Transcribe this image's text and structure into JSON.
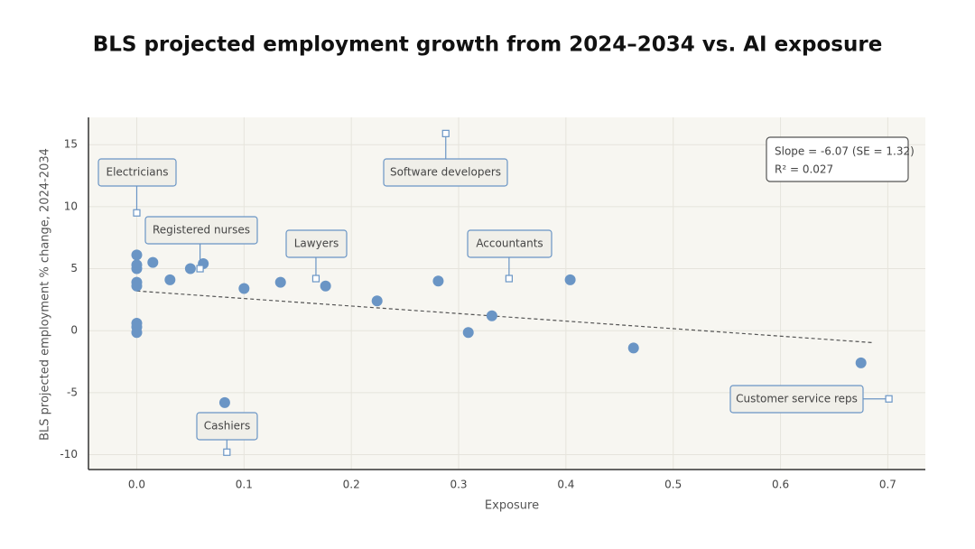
{
  "chart_data": {
    "type": "scatter",
    "title": "BLS projected employment growth from 2024–2034 vs. AI exposure",
    "x_label": "Exposure",
    "y_label": "BLS projected employment % change, 2024-2034",
    "x": [
      0,
      0,
      0,
      0,
      0,
      0,
      0,
      0,
      0.015,
      0.031,
      0.05,
      0.062,
      0.082,
      0.1,
      0.134,
      0.176,
      0.224,
      0.281,
      0.309,
      0.331,
      0.404,
      0.463,
      0.675
    ],
    "series": [
      {
        "color": "#6a95c5",
        "values": [
          6.1,
          5.3,
          5.0,
          3.9,
          3.6,
          0.6,
          0.3,
          -0.15,
          5.5,
          4.1,
          5.0,
          5.4,
          -5.8,
          3.4,
          3.9,
          3.6,
          2.4,
          4.0,
          -0.15,
          1.2,
          4.1,
          -1.4,
          -2.6
        ]
      }
    ],
    "trendline": {
      "x": [
        0,
        0.685
      ],
      "y": [
        3.2,
        -0.96
      ],
      "color": "#555555"
    },
    "stats": [
      "Slope = -6.07 (SE = 1.32)",
      "R² = 0.027"
    ],
    "annotations": [
      {
        "label": "Electricians",
        "x": 0,
        "y": 9.5
      },
      {
        "label": "Registered nurses",
        "x": 0.059,
        "y": 5.0
      },
      {
        "label": "Lawyers",
        "x": 0.167,
        "y": 4.2
      },
      {
        "label": "Software developers",
        "x": 0.288,
        "y": 15.9
      },
      {
        "label": "Accountants",
        "x": 0.347,
        "y": 4.2
      },
      {
        "label": "Cashiers",
        "x": 0.084,
        "y": -9.8
      },
      {
        "label": "Customer service reps",
        "x": 0.701,
        "y": -5.5
      }
    ],
    "xlim": [
      -0.045,
      0.735
    ],
    "ylim": [
      -11.2,
      17.2
    ],
    "xticks": [
      {
        "value": 0,
        "label": "0.0"
      },
      0.1,
      0.2,
      0.3,
      0.4,
      0.5,
      0.6,
      0.7
    ],
    "yticks": [
      -10,
      -5,
      0,
      5,
      10,
      15
    ],
    "grid": true
  }
}
